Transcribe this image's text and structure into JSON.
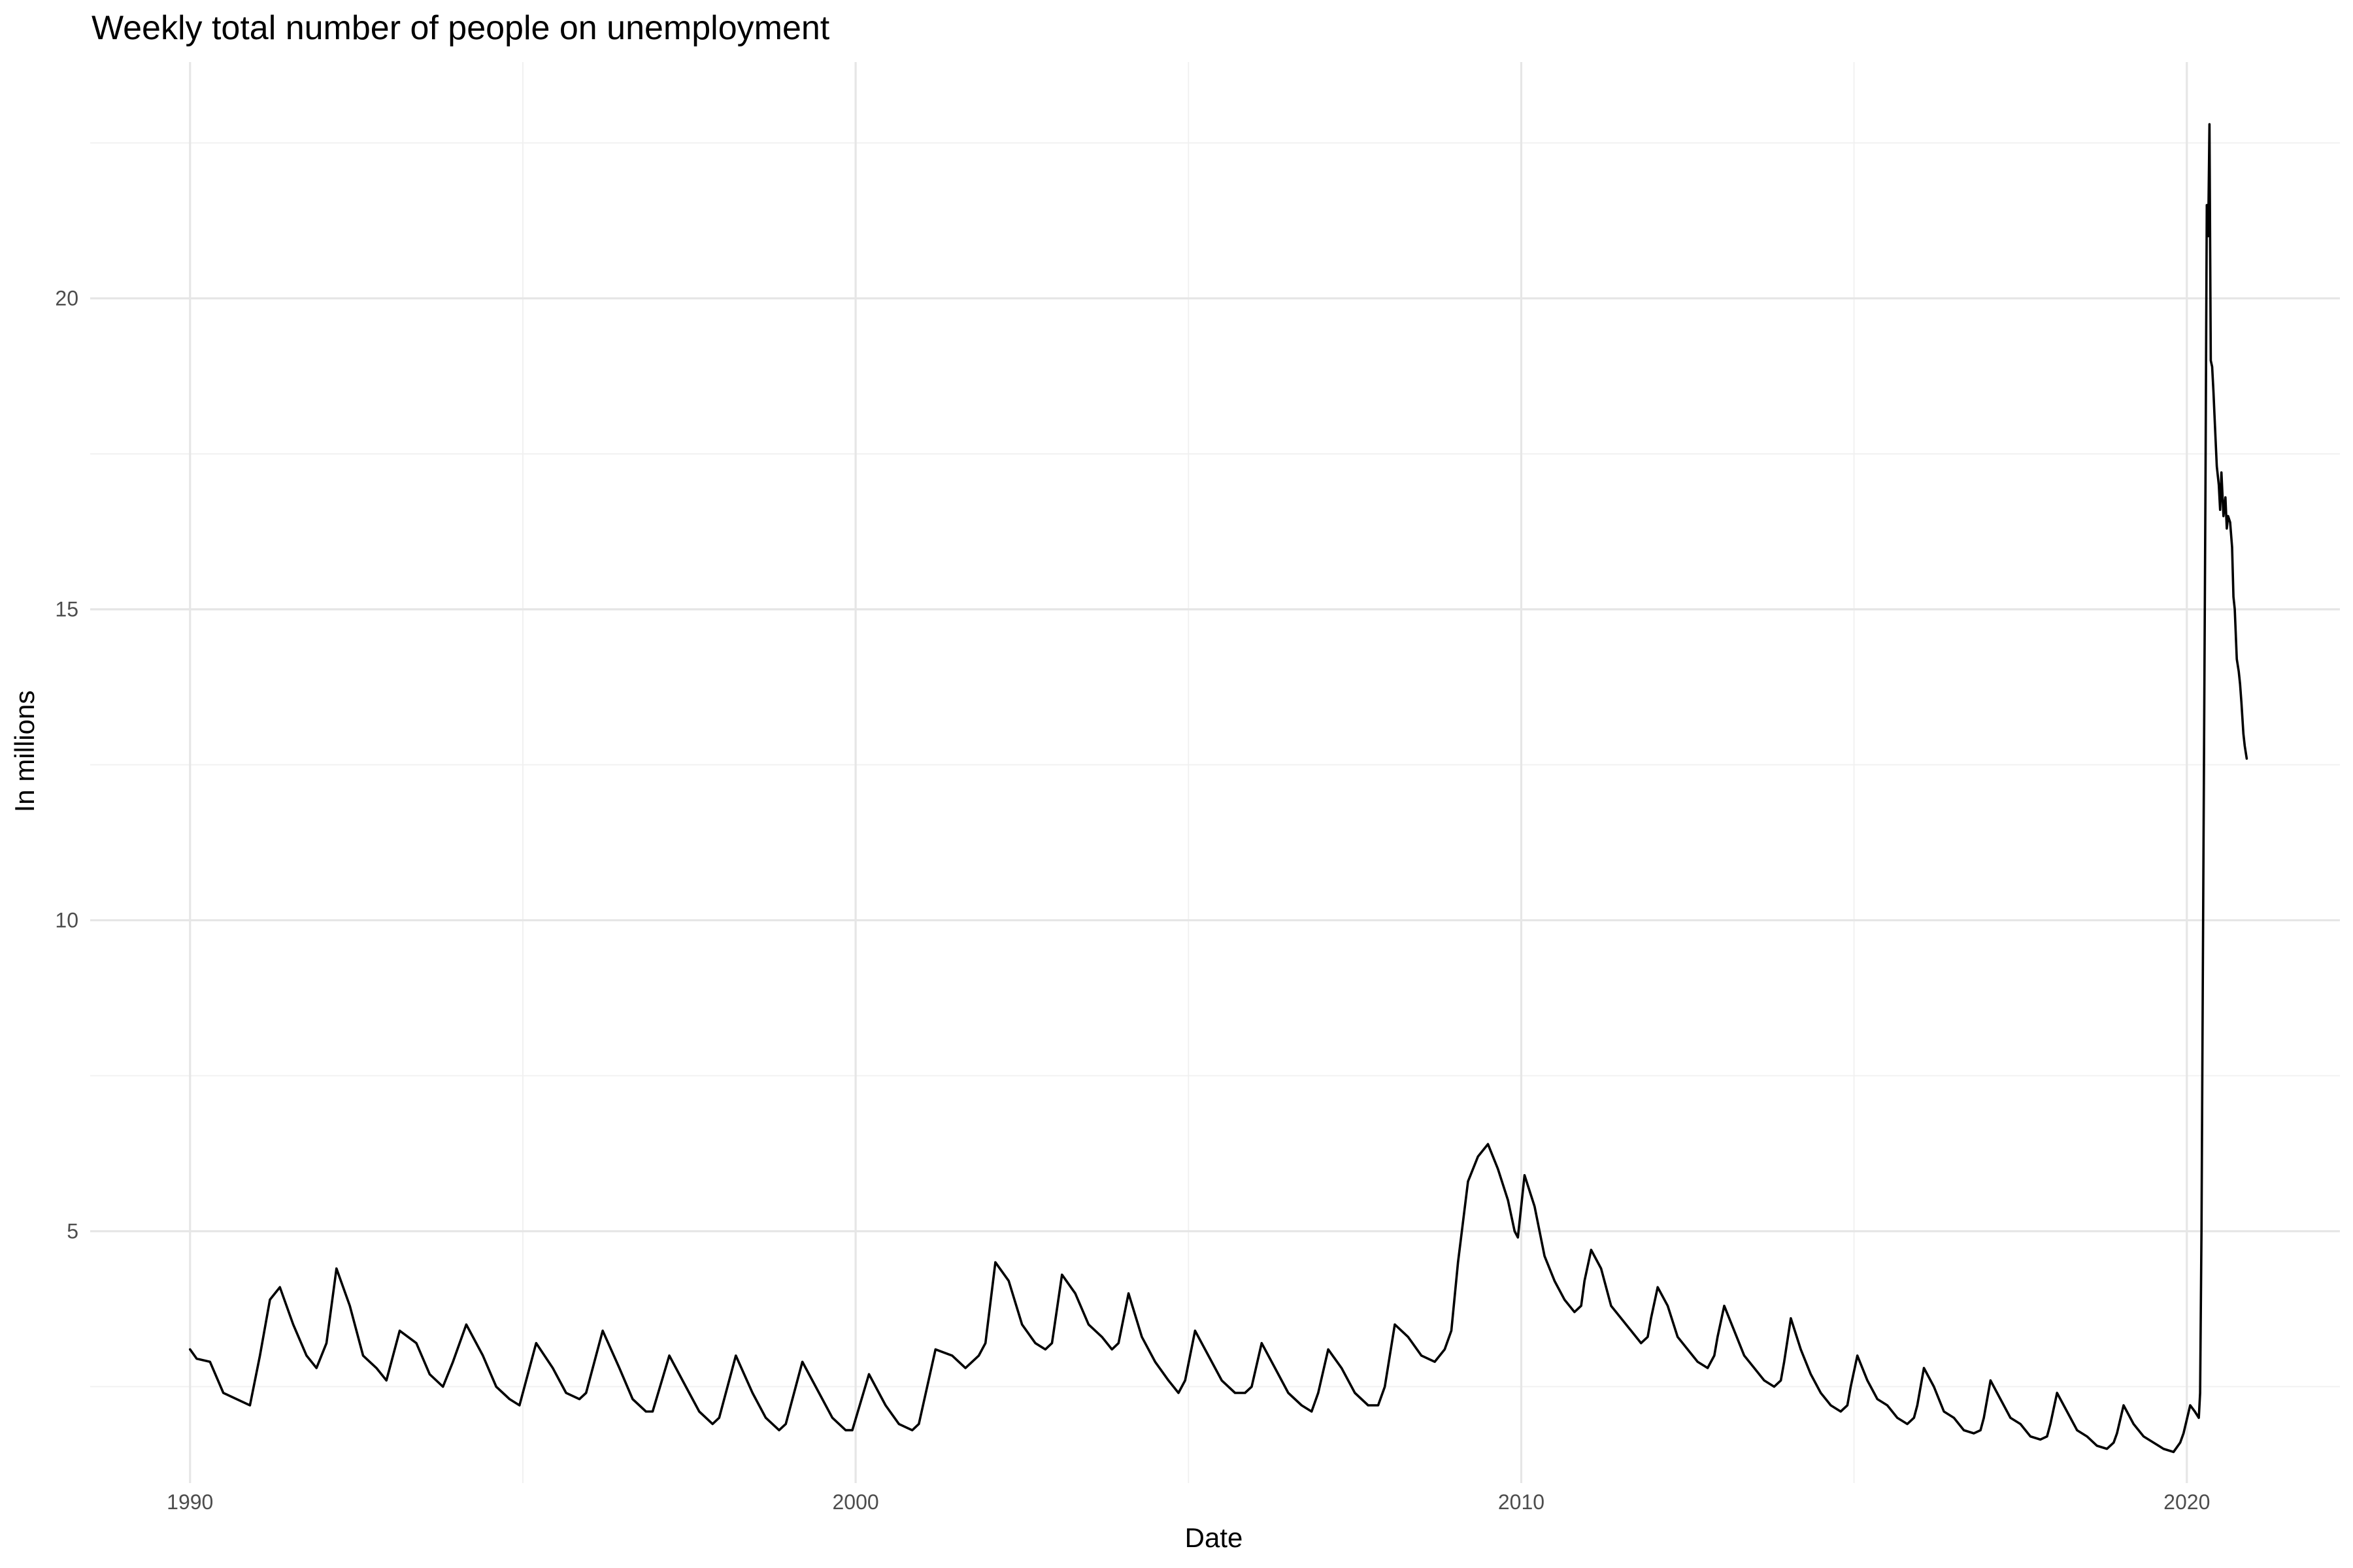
{
  "chart_data": {
    "type": "line",
    "title": "Weekly total number of people on unemployment",
    "xlabel": "Date",
    "ylabel": "In millions",
    "xlim": [
      1988.5,
      2022.3
    ],
    "ylim": [
      0.95,
      23.8
    ],
    "x_ticks": [
      {
        "value": 1990,
        "label": "1990"
      },
      {
        "value": 2000,
        "label": "2000"
      },
      {
        "value": 2010,
        "label": "2010"
      },
      {
        "value": 2020,
        "label": "2020"
      }
    ],
    "x_minor_ticks": [
      1995,
      2005,
      2015
    ],
    "y_ticks": [
      {
        "value": 5,
        "label": "5"
      },
      {
        "value": 10,
        "label": "10"
      },
      {
        "value": 15,
        "label": "15"
      },
      {
        "value": 20,
        "label": "20"
      }
    ],
    "y_minor_ticks": [
      2.5,
      7.5,
      12.5,
      17.5,
      22.5
    ],
    "grid": true,
    "legend": "none",
    "series_color": "#000000",
    "series": [
      {
        "x": [
          1990.0,
          1990.1,
          1990.3,
          1990.5,
          1990.7,
          1990.9,
          1991.05,
          1991.2,
          1991.35,
          1991.55,
          1991.75,
          1991.9,
          1992.05,
          1992.2,
          1992.4,
          1992.6,
          1992.8,
          1992.95,
          1993.15,
          1993.4,
          1993.6,
          1993.8,
          1993.95,
          1994.15,
          1994.4,
          1994.6,
          1994.8,
          1994.95,
          1995.2,
          1995.45,
          1995.65,
          1995.85,
          1995.95,
          1996.2,
          1996.45,
          1996.65,
          1996.85,
          1996.95,
          1997.2,
          1997.45,
          1997.65,
          1997.85,
          1997.95,
          1998.2,
          1998.45,
          1998.65,
          1998.85,
          1998.95,
          1999.2,
          1999.45,
          1999.65,
          1999.85,
          1999.95,
          2000.2,
          2000.45,
          2000.65,
          2000.85,
          2000.95,
          2001.2,
          2001.45,
          2001.65,
          2001.85,
          2001.95,
          2002.1,
          2002.3,
          2002.5,
          2002.7,
          2002.85,
          2002.95,
          2003.1,
          2003.3,
          2003.5,
          2003.7,
          2003.85,
          2003.95,
          2004.1,
          2004.3,
          2004.5,
          2004.7,
          2004.85,
          2004.95,
          2005.1,
          2005.3,
          2005.5,
          2005.7,
          2005.85,
          2005.95,
          2006.1,
          2006.3,
          2006.5,
          2006.7,
          2006.85,
          2006.95,
          2007.1,
          2007.3,
          2007.5,
          2007.7,
          2007.85,
          2007.95,
          2008.1,
          2008.3,
          2008.5,
          2008.7,
          2008.85,
          2008.95,
          2009.05,
          2009.2,
          2009.35,
          2009.5,
          2009.65,
          2009.8,
          2009.9,
          2009.95,
          2010.05,
          2010.2,
          2010.35,
          2010.5,
          2010.65,
          2010.8,
          2010.9,
          2010.95,
          2011.05,
          2011.2,
          2011.35,
          2011.5,
          2011.65,
          2011.8,
          2011.9,
          2011.95,
          2012.05,
          2012.2,
          2012.35,
          2012.5,
          2012.65,
          2012.8,
          2012.9,
          2012.95,
          2013.05,
          2013.2,
          2013.35,
          2013.5,
          2013.65,
          2013.8,
          2013.9,
          2013.95,
          2014.05,
          2014.2,
          2014.35,
          2014.5,
          2014.65,
          2014.8,
          2014.9,
          2014.95,
          2015.05,
          2015.2,
          2015.35,
          2015.5,
          2015.65,
          2015.8,
          2015.9,
          2015.95,
          2016.05,
          2016.2,
          2016.35,
          2016.5,
          2016.65,
          2016.8,
          2016.9,
          2016.95,
          2017.05,
          2017.2,
          2017.35,
          2017.5,
          2017.65,
          2017.8,
          2017.9,
          2017.95,
          2018.05,
          2018.2,
          2018.35,
          2018.5,
          2018.65,
          2018.8,
          2018.9,
          2018.95,
          2019.05,
          2019.2,
          2019.35,
          2019.5,
          2019.65,
          2019.8,
          2019.9,
          2019.95,
          2020.05,
          2020.12,
          2020.18,
          2020.2,
          2020.22,
          2020.25,
          2020.28,
          2020.3,
          2020.32,
          2020.34,
          2020.36,
          2020.38,
          2020.4,
          2020.42,
          2020.45,
          2020.48,
          2020.5,
          2020.52,
          2020.55,
          2020.58,
          2020.6,
          2020.62,
          2020.65,
          2020.68,
          2020.7,
          2020.72,
          2020.75,
          2020.78,
          2020.8,
          2020.82,
          2020.85,
          2020.87,
          2020.9
        ],
        "y": [
          3.1,
          2.95,
          2.9,
          2.4,
          2.3,
          2.2,
          3.0,
          3.9,
          4.1,
          3.5,
          3.0,
          2.8,
          3.2,
          4.4,
          3.8,
          3.0,
          2.8,
          2.6,
          3.4,
          3.2,
          2.7,
          2.5,
          2.9,
          3.5,
          3.0,
          2.5,
          2.3,
          2.2,
          3.2,
          2.8,
          2.4,
          2.3,
          2.4,
          3.4,
          2.8,
          2.3,
          2.1,
          2.1,
          3.0,
          2.5,
          2.1,
          1.9,
          2.0,
          3.0,
          2.4,
          2.0,
          1.8,
          1.9,
          2.9,
          2.4,
          2.0,
          1.8,
          1.8,
          2.7,
          2.2,
          1.9,
          1.8,
          1.9,
          3.1,
          3.0,
          2.8,
          3.0,
          3.2,
          4.5,
          4.2,
          3.5,
          3.2,
          3.1,
          3.2,
          4.3,
          4.0,
          3.5,
          3.3,
          3.1,
          3.2,
          4.0,
          3.3,
          2.9,
          2.6,
          2.4,
          2.6,
          3.4,
          3.0,
          2.6,
          2.4,
          2.4,
          2.5,
          3.2,
          2.8,
          2.4,
          2.2,
          2.1,
          2.4,
          3.1,
          2.8,
          2.4,
          2.2,
          2.2,
          2.5,
          3.5,
          3.3,
          3.0,
          2.9,
          3.1,
          3.4,
          4.5,
          5.8,
          6.2,
          6.4,
          6.0,
          5.5,
          5.0,
          4.9,
          5.9,
          5.4,
          4.6,
          4.2,
          3.9,
          3.7,
          3.8,
          4.2,
          4.7,
          4.4,
          3.8,
          3.6,
          3.4,
          3.2,
          3.3,
          3.6,
          4.1,
          3.8,
          3.3,
          3.1,
          2.9,
          2.8,
          3.0,
          3.3,
          3.8,
          3.4,
          3.0,
          2.8,
          2.6,
          2.5,
          2.6,
          2.9,
          3.6,
          3.1,
          2.7,
          2.4,
          2.2,
          2.1,
          2.2,
          2.5,
          3.0,
          2.6,
          2.3,
          2.2,
          2.0,
          1.9,
          2.0,
          2.2,
          2.8,
          2.5,
          2.1,
          2.0,
          1.8,
          1.75,
          1.8,
          2.0,
          2.6,
          2.3,
          2.0,
          1.9,
          1.7,
          1.65,
          1.7,
          1.9,
          2.4,
          2.1,
          1.8,
          1.7,
          1.55,
          1.5,
          1.6,
          1.75,
          2.2,
          1.9,
          1.7,
          1.6,
          1.5,
          1.45,
          1.6,
          1.75,
          2.2,
          2.1,
          2.0,
          2.4,
          5.0,
          11.0,
          17.0,
          21.5,
          21.0,
          22.8,
          19.0,
          18.9,
          18.5,
          18.0,
          17.3,
          17.0,
          16.6,
          17.2,
          16.5,
          16.8,
          16.3,
          16.5,
          16.4,
          16.0,
          15.2,
          15.0,
          14.2,
          14.0,
          13.8,
          13.5,
          13.0,
          12.8,
          12.6
        ]
      }
    ]
  }
}
